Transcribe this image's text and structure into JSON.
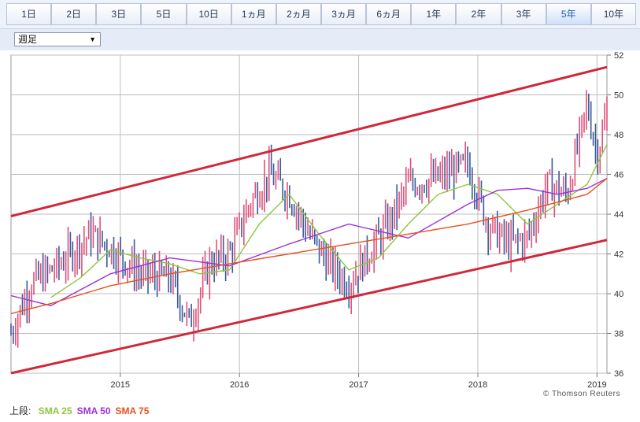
{
  "tabs": [
    {
      "label": "1日"
    },
    {
      "label": "2日"
    },
    {
      "label": "3日"
    },
    {
      "label": "5日"
    },
    {
      "label": "10日"
    },
    {
      "label": "1ヵ月"
    },
    {
      "label": "2ヵ月"
    },
    {
      "label": "3ヵ月"
    },
    {
      "label": "6ヵ月"
    },
    {
      "label": "1年"
    },
    {
      "label": "2年"
    },
    {
      "label": "3年"
    },
    {
      "label": "5年",
      "active": true
    },
    {
      "label": "10年"
    }
  ],
  "interval_select": {
    "value": "週足"
  },
  "credit": "© Thomson Reuters",
  "legend": {
    "prefix": "上段:",
    "items": [
      {
        "label": "SMA 25",
        "color": "#8dc63f"
      },
      {
        "label": "SMA 50",
        "color": "#9b30d9"
      },
      {
        "label": "SMA 75",
        "color": "#e8501e"
      }
    ]
  },
  "colors": {
    "up": "#e0507a",
    "down": "#3a5a9a",
    "channel": "#d0283a",
    "grid": "#bdbdbd"
  },
  "chart_data": {
    "type": "line",
    "x_range": [
      "2014-02",
      "2019-02"
    ],
    "ylim": [
      36,
      52
    ],
    "y_ticks": [
      36,
      38,
      40,
      42,
      44,
      46,
      48,
      50,
      52
    ],
    "x_ticks": [
      "2015",
      "2016",
      "2017",
      "2018",
      "2019"
    ],
    "channel_lines": [
      {
        "name": "upper",
        "x": [
          "2014-02",
          "2019-02"
        ],
        "y": [
          43.9,
          51.4
        ]
      },
      {
        "name": "lower",
        "x": [
          "2014-02",
          "2019-02"
        ],
        "y": [
          36.0,
          42.7
        ]
      }
    ],
    "price_path": [
      {
        "x": "2014-02",
        "y": 38.0
      },
      {
        "x": "2014-04",
        "y": 40.5
      },
      {
        "x": "2014-07",
        "y": 41.5
      },
      {
        "x": "2014-10",
        "y": 43.0
      },
      {
        "x": "2014-12",
        "y": 42.3
      },
      {
        "x": "2015-03",
        "y": 41.0
      },
      {
        "x": "2015-06",
        "y": 40.8
      },
      {
        "x": "2015-08",
        "y": 38.5
      },
      {
        "x": "2015-10",
        "y": 41.5
      },
      {
        "x": "2015-12",
        "y": 42.0
      },
      {
        "x": "2016-02",
        "y": 44.5
      },
      {
        "x": "2016-04",
        "y": 46.0
      },
      {
        "x": "2016-06",
        "y": 45.0
      },
      {
        "x": "2016-08",
        "y": 43.0
      },
      {
        "x": "2016-10",
        "y": 41.5
      },
      {
        "x": "2016-12",
        "y": 40.5
      },
      {
        "x": "2017-02",
        "y": 42.0
      },
      {
        "x": "2017-04",
        "y": 43.5
      },
      {
        "x": "2017-06",
        "y": 45.5
      },
      {
        "x": "2017-09",
        "y": 45.8
      },
      {
        "x": "2017-12",
        "y": 46.5
      },
      {
        "x": "2018-02",
        "y": 43.5
      },
      {
        "x": "2018-04",
        "y": 42.5
      },
      {
        "x": "2018-06",
        "y": 42.8
      },
      {
        "x": "2018-08",
        "y": 45.5
      },
      {
        "x": "2018-10",
        "y": 45.0
      },
      {
        "x": "2018-12",
        "y": 49.5
      },
      {
        "x": "2019-01",
        "y": 47.0
      },
      {
        "x": "2019-02",
        "y": 49.0
      }
    ],
    "series": [
      {
        "name": "SMA 25",
        "color": "#8dc63f",
        "points": [
          {
            "x": "2014-06",
            "y": 39.8
          },
          {
            "x": "2014-09",
            "y": 40.8
          },
          {
            "x": "2014-12",
            "y": 42.2
          },
          {
            "x": "2015-03",
            "y": 41.8
          },
          {
            "x": "2015-06",
            "y": 41.5
          },
          {
            "x": "2015-09",
            "y": 41.0
          },
          {
            "x": "2015-12",
            "y": 41.2
          },
          {
            "x": "2016-03",
            "y": 43.5
          },
          {
            "x": "2016-06",
            "y": 45.0
          },
          {
            "x": "2016-09",
            "y": 43.0
          },
          {
            "x": "2016-12",
            "y": 41.2
          },
          {
            "x": "2017-03",
            "y": 41.8
          },
          {
            "x": "2017-06",
            "y": 43.5
          },
          {
            "x": "2017-09",
            "y": 45.0
          },
          {
            "x": "2017-12",
            "y": 45.5
          },
          {
            "x": "2018-03",
            "y": 45.0
          },
          {
            "x": "2018-06",
            "y": 43.5
          },
          {
            "x": "2018-09",
            "y": 44.5
          },
          {
            "x": "2018-12",
            "y": 45.5
          },
          {
            "x": "2019-02",
            "y": 47.5
          }
        ]
      },
      {
        "name": "SMA 50",
        "color": "#9b30d9",
        "points": [
          {
            "x": "2014-02",
            "y": 39.9
          },
          {
            "x": "2014-06",
            "y": 39.4
          },
          {
            "x": "2014-12",
            "y": 41.0
          },
          {
            "x": "2015-06",
            "y": 41.8
          },
          {
            "x": "2015-12",
            "y": 41.4
          },
          {
            "x": "2016-06",
            "y": 42.5
          },
          {
            "x": "2016-12",
            "y": 43.5
          },
          {
            "x": "2017-06",
            "y": 42.8
          },
          {
            "x": "2017-12",
            "y": 44.5
          },
          {
            "x": "2018-03",
            "y": 45.2
          },
          {
            "x": "2018-06",
            "y": 45.3
          },
          {
            "x": "2018-09",
            "y": 45.0
          },
          {
            "x": "2018-12",
            "y": 45.3
          },
          {
            "x": "2019-02",
            "y": 45.8
          }
        ]
      },
      {
        "name": "SMA 75",
        "color": "#e8501e",
        "points": [
          {
            "x": "2014-02",
            "y": 39.0
          },
          {
            "x": "2014-06",
            "y": 39.5
          },
          {
            "x": "2014-12",
            "y": 40.4
          },
          {
            "x": "2015-06",
            "y": 41.0
          },
          {
            "x": "2015-12",
            "y": 41.5
          },
          {
            "x": "2016-06",
            "y": 42.0
          },
          {
            "x": "2016-12",
            "y": 42.5
          },
          {
            "x": "2017-06",
            "y": 43.0
          },
          {
            "x": "2017-12",
            "y": 43.5
          },
          {
            "x": "2018-06",
            "y": 44.2
          },
          {
            "x": "2018-12",
            "y": 45.0
          },
          {
            "x": "2019-02",
            "y": 45.8
          }
        ]
      }
    ]
  }
}
